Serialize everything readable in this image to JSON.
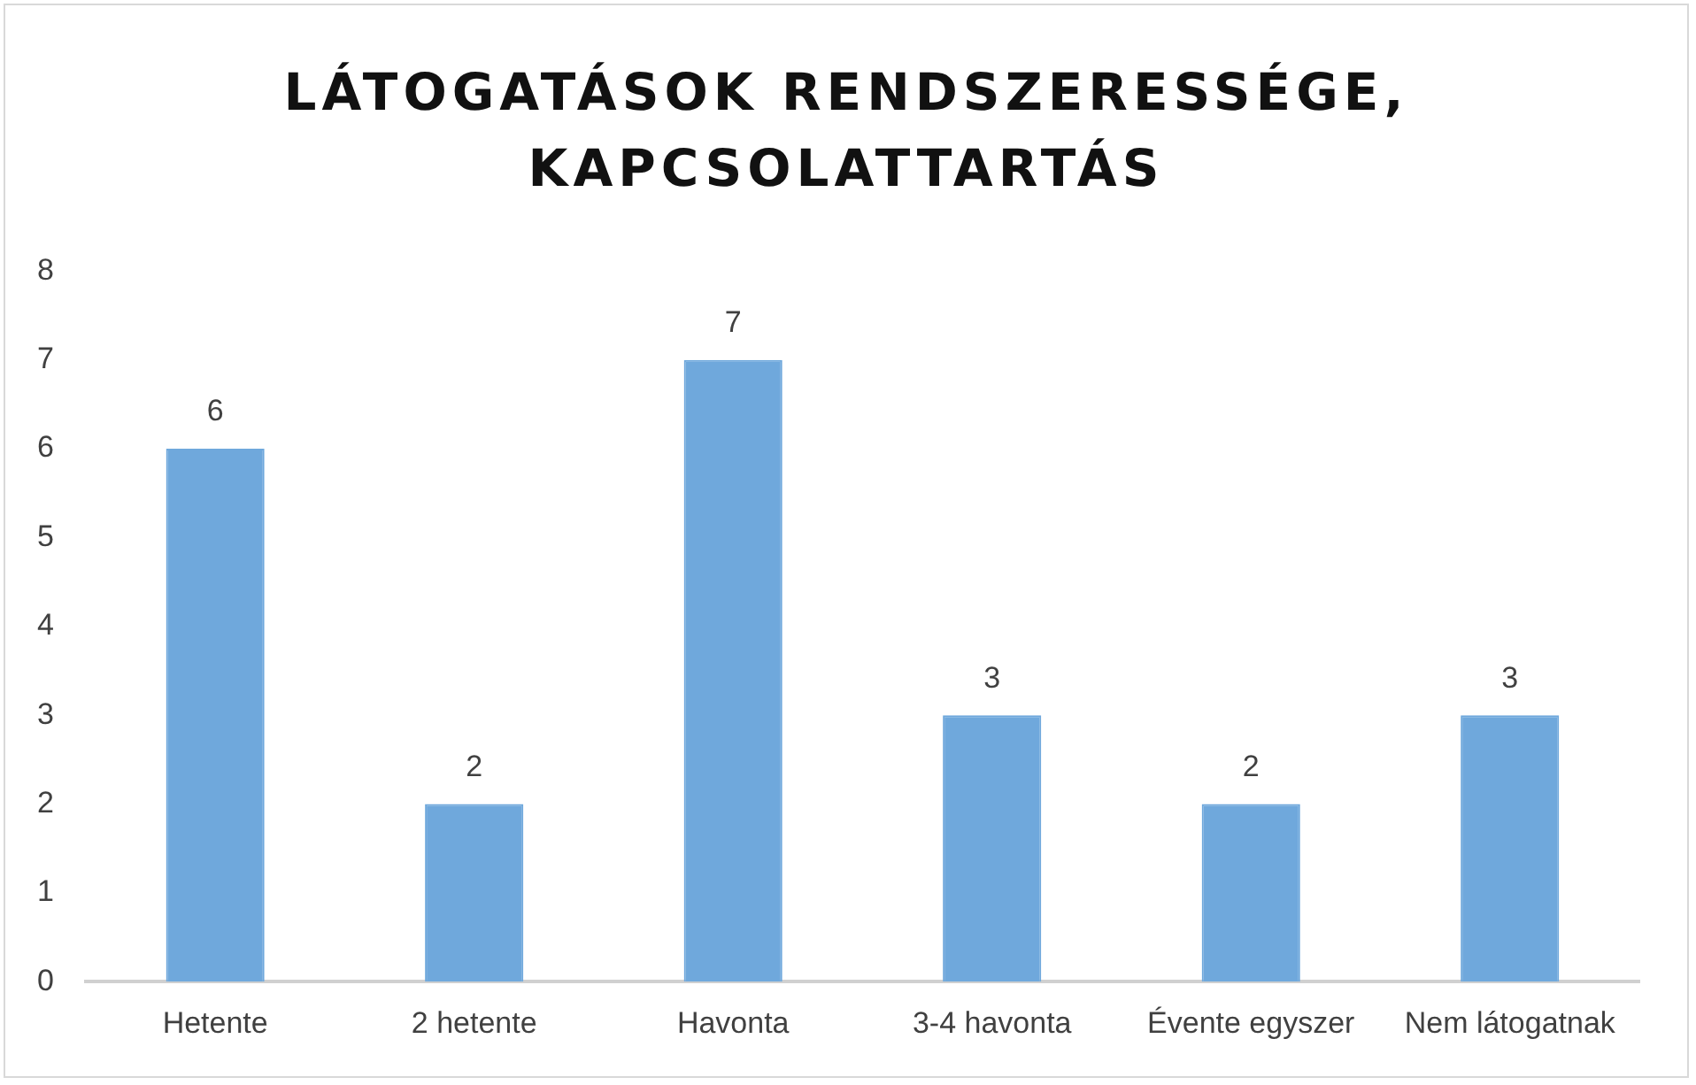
{
  "chart_data": {
    "type": "bar",
    "title": "LÁTOGATÁSOK RENDSZERESSÉGE, KAPCSOLATTARTÁS",
    "categories": [
      "Hetente",
      "2 hetente",
      "Havonta",
      "3-4 havonta",
      "Évente egyszer",
      "Nem látogatnak"
    ],
    "values": [
      6,
      2,
      7,
      3,
      2,
      3
    ],
    "color": "#6fa8dc",
    "ylim": [
      0,
      8
    ],
    "yticks": [
      0,
      1,
      2,
      3,
      4,
      5,
      6,
      7,
      8
    ],
    "grid": false,
    "legend": false,
    "data_labels": true
  }
}
